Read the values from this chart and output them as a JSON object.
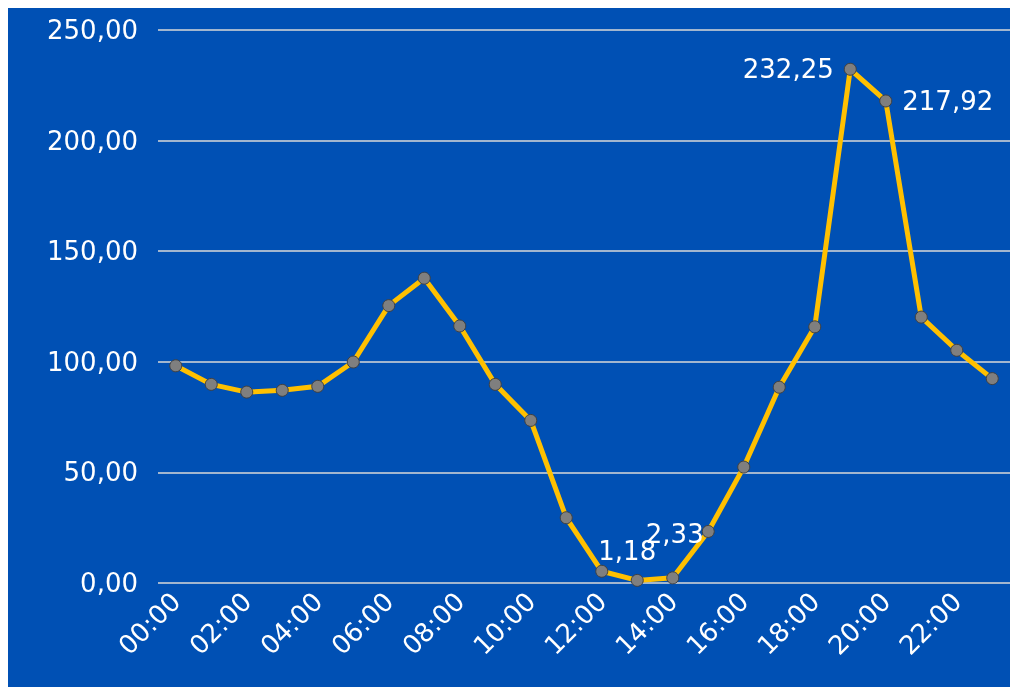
{
  "chart_data": {
    "type": "line",
    "categories": [
      "00:00",
      null,
      "02:00",
      null,
      "04:00",
      null,
      "06:00",
      null,
      "08:00",
      null,
      "10:00",
      null,
      "12:00",
      null,
      "14:00",
      null,
      "16:00",
      null,
      "18:00",
      null,
      "20:00",
      null,
      "22:00",
      null
    ],
    "series": [
      {
        "color": "#ffc000",
        "values": [
          98.2,
          89.8,
          86.3,
          87.1,
          88.9,
          99.9,
          125.4,
          137.8,
          116.2,
          89.8,
          73.5,
          29.5,
          5.3,
          1.18,
          2.33,
          23.3,
          52.4,
          88.5,
          115.8,
          232.25,
          217.92,
          120.2,
          105.2,
          92.4
        ],
        "value_labels": [
          null,
          null,
          null,
          null,
          null,
          null,
          null,
          null,
          null,
          null,
          null,
          null,
          null,
          "1,18",
          "2,33",
          null,
          null,
          null,
          null,
          "232,25",
          "217,92",
          null,
          null,
          null
        ]
      }
    ],
    "ylim": [
      0,
      250
    ],
    "yticks": [
      {
        "value": 0,
        "label": "0,00"
      },
      {
        "value": 50,
        "label": "50,00"
      },
      {
        "value": 100,
        "label": "100,00"
      },
      {
        "value": 150,
        "label": "150,00"
      },
      {
        "value": 200,
        "label": "200,00"
      },
      {
        "value": 250,
        "label": "250,00"
      }
    ],
    "grid": "y",
    "marker": "circle",
    "line_style": "solid"
  }
}
